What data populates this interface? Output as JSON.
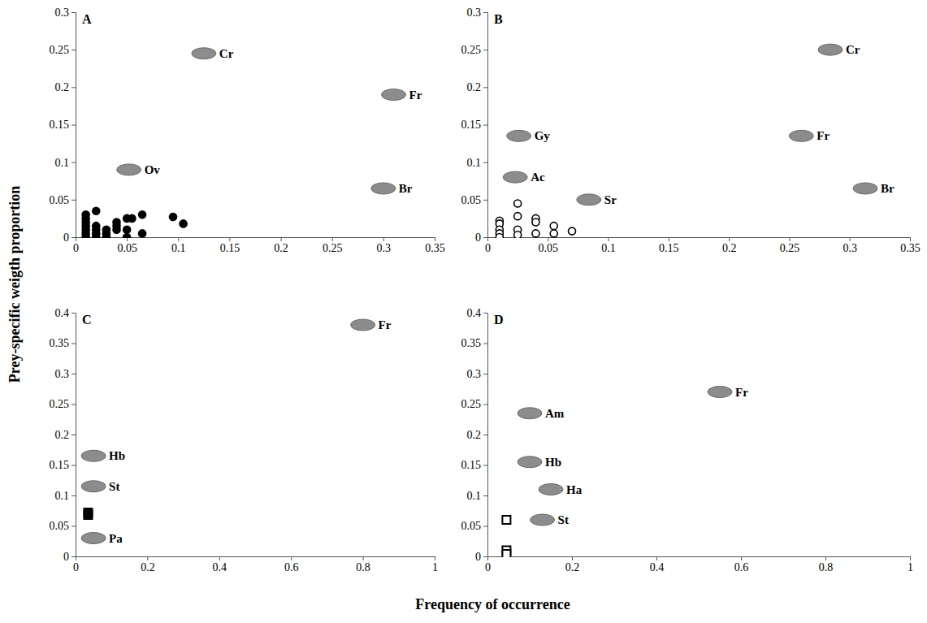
{
  "chart_data": [
    {
      "type": "scatter",
      "title": "A",
      "xlim": [
        0,
        0.35
      ],
      "xticks": [
        0,
        0.05,
        0.1,
        0.15,
        0.2,
        0.25,
        0.3,
        0.35
      ],
      "ylim": [
        0,
        0.3
      ],
      "yticks": [
        0,
        0.05,
        0.1,
        0.15,
        0.2,
        0.25,
        0.3
      ],
      "series": [
        {
          "marker": "circle",
          "color": "#000000",
          "x": [
            0.01,
            0.01,
            0.01,
            0.01,
            0.01,
            0.01,
            0.01,
            0.02,
            0.02,
            0.02,
            0.02,
            0.02,
            0.03,
            0.03,
            0.03,
            0.04,
            0.04,
            0.04,
            0.05,
            0.05,
            0.05,
            0.055,
            0.065,
            0.065,
            0.095,
            0.105
          ],
          "values": [
            0.03,
            0.025,
            0.02,
            0.015,
            0.01,
            0.005,
            0,
            0.035,
            0.015,
            0.01,
            0.005,
            0,
            0.01,
            0.005,
            0,
            0.02,
            0.015,
            0.01,
            0.025,
            0.01,
            0,
            0.025,
            0.03,
            0.005,
            0.027,
            0.018
          ]
        },
        {
          "marker": "icon",
          "color": "#8c8c8c",
          "labels": [
            "Cr",
            "Fr",
            "Ov",
            "Br"
          ],
          "x": [
            0.125,
            0.31,
            0.052,
            0.3
          ],
          "values": [
            0.245,
            0.19,
            0.09,
            0.065
          ]
        }
      ]
    },
    {
      "type": "scatter",
      "title": "B",
      "xlim": [
        0,
        0.35
      ],
      "xticks": [
        0,
        0.05,
        0.1,
        0.15,
        0.2,
        0.25,
        0.3,
        0.35
      ],
      "ylim": [
        0,
        0.3
      ],
      "yticks": [
        0,
        0.05,
        0.1,
        0.15,
        0.2,
        0.25,
        0.3
      ],
      "series": [
        {
          "marker": "circle-open",
          "color": "#000000",
          "x": [
            0.01,
            0.01,
            0.01,
            0.01,
            0.01,
            0.025,
            0.025,
            0.025,
            0.025,
            0.04,
            0.04,
            0.04,
            0.055,
            0.055,
            0.07
          ],
          "values": [
            0.022,
            0.018,
            0.01,
            0.005,
            0,
            0.045,
            0.028,
            0.01,
            0.003,
            0.025,
            0.02,
            0.005,
            0.015,
            0.005,
            0.008
          ]
        },
        {
          "marker": "icon",
          "color": "#8c8c8c",
          "labels": [
            "Cr",
            "Gy",
            "Fr",
            "Ac",
            "Sr",
            "Br"
          ],
          "x": [
            0.284,
            0.026,
            0.26,
            0.023,
            0.084,
            0.313
          ],
          "values": [
            0.25,
            0.135,
            0.135,
            0.08,
            0.05,
            0.065
          ]
        }
      ]
    },
    {
      "type": "scatter",
      "title": "C",
      "xlim": [
        0,
        1
      ],
      "xticks": [
        0,
        0.2,
        0.4,
        0.6,
        0.8,
        1
      ],
      "ylim": [
        0,
        0.4
      ],
      "yticks": [
        0,
        0.05,
        0.1,
        0.15,
        0.2,
        0.25,
        0.3,
        0.35,
        0.4
      ],
      "series": [
        {
          "marker": "square",
          "color": "#000000",
          "x": [
            0.035,
            0.035
          ],
          "values": [
            0.072,
            0.068
          ]
        },
        {
          "marker": "icon",
          "color": "#8c8c8c",
          "labels": [
            "Fr",
            "Hb",
            "St",
            "Pa"
          ],
          "x": [
            0.8,
            0.05,
            0.05,
            0.05
          ],
          "values": [
            0.38,
            0.165,
            0.115,
            0.03
          ]
        }
      ]
    },
    {
      "type": "scatter",
      "title": "D",
      "xlim": [
        0,
        1
      ],
      "xticks": [
        0,
        0.2,
        0.4,
        0.6,
        0.8,
        1
      ],
      "ylim": [
        0,
        0.4
      ],
      "yticks": [
        0,
        0.05,
        0.1,
        0.15,
        0.2,
        0.25,
        0.3,
        0.35,
        0.4
      ],
      "series": [
        {
          "marker": "square-open",
          "color": "#000000",
          "x": [
            0.045,
            0.045,
            0.045
          ],
          "values": [
            0.06,
            0.01,
            0.004
          ]
        },
        {
          "marker": "icon",
          "color": "#8c8c8c",
          "labels": [
            "Fr",
            "Am",
            "Hb",
            "Ha",
            "St"
          ],
          "x": [
            0.55,
            0.1,
            0.1,
            0.15,
            0.13
          ],
          "values": [
            0.27,
            0.235,
            0.155,
            0.11,
            0.06
          ]
        }
      ]
    }
  ],
  "xlabel": "Frequency of occurrence",
  "ylabel": "Prey-specific weigth proportion"
}
